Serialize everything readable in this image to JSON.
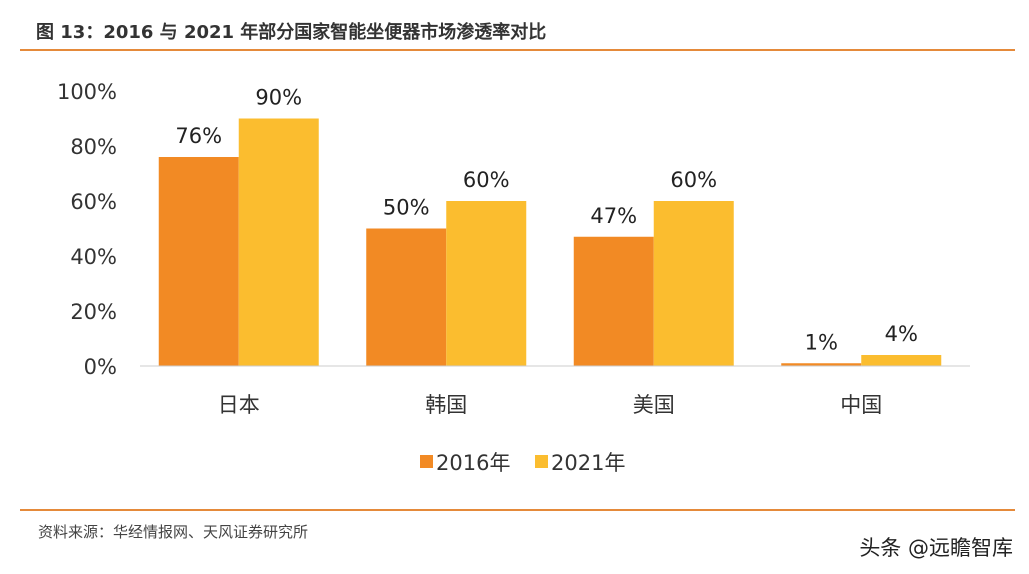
{
  "title": "图 13：2016 与 2021 年部分国家智能坐便器市场渗透率对比",
  "source": "资料来源：华经情报网、天风证券研究所",
  "watermark": "头条 @远瞻智库",
  "chart_data": {
    "type": "bar",
    "title": "",
    "categories": [
      "日本",
      "韩国",
      "美国",
      "中国"
    ],
    "series": [
      {
        "name": "2016年",
        "values": [
          76,
          50,
          47,
          1
        ],
        "color": "#F28A24"
      },
      {
        "name": "2021年",
        "values": [
          90,
          60,
          60,
          4
        ],
        "color": "#FBBD2F"
      }
    ],
    "ylim": [
      0,
      100
    ],
    "yticks": [
      "0%",
      "20%",
      "40%",
      "60%",
      "80%",
      "100%"
    ],
    "data_labels": [
      [
        "76%",
        "50%",
        "47%",
        "1%"
      ],
      [
        "90%",
        "60%",
        "60%",
        "4%"
      ]
    ],
    "grid": false,
    "legend": "bottom"
  }
}
